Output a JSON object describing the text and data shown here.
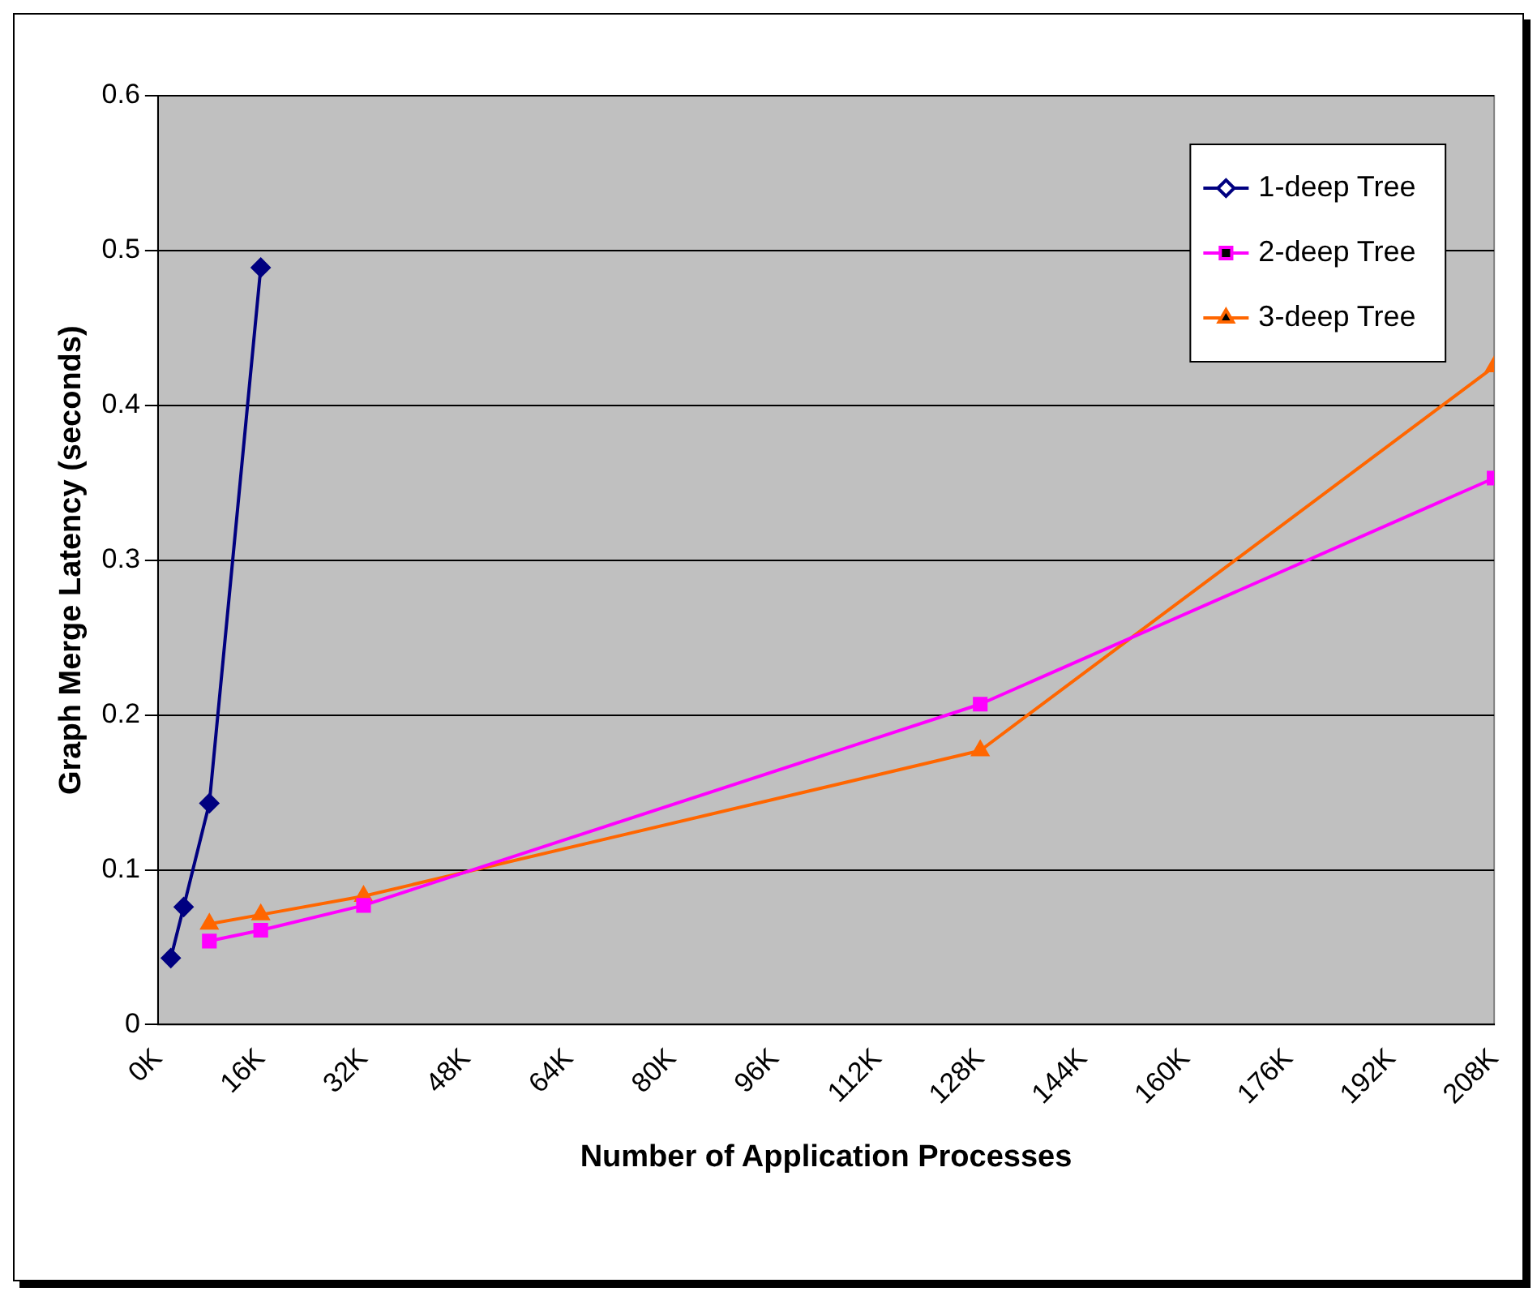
{
  "chart_data": {
    "type": "line",
    "xlabel": "Number of Application Processes",
    "ylabel": "Graph Merge Latency (seconds)",
    "xlim": [
      0,
      208
    ],
    "ylim": [
      0,
      0.6
    ],
    "xticks": [
      {
        "value": 0,
        "label": "0K"
      },
      {
        "value": 16,
        "label": "16K"
      },
      {
        "value": 32,
        "label": "32K"
      },
      {
        "value": 48,
        "label": "48K"
      },
      {
        "value": 64,
        "label": "64K"
      },
      {
        "value": 80,
        "label": "80K"
      },
      {
        "value": 96,
        "label": "96K"
      },
      {
        "value": 112,
        "label": "112K"
      },
      {
        "value": 128,
        "label": "128K"
      },
      {
        "value": 144,
        "label": "144K"
      },
      {
        "value": 160,
        "label": "160K"
      },
      {
        "value": 176,
        "label": "176K"
      },
      {
        "value": 192,
        "label": "192K"
      },
      {
        "value": 208,
        "label": "208K"
      }
    ],
    "yticks": [
      0,
      0.1,
      0.2,
      0.3,
      0.4,
      0.5,
      0.6
    ],
    "grid": "y",
    "legend": "top right",
    "line_style": "solid",
    "series": [
      {
        "name": "1-deep Tree",
        "color": "#000080",
        "marker": "diamond",
        "x": [
          2,
          4,
          8,
          16
        ],
        "values": [
          0.043,
          0.076,
          0.143,
          0.489
        ]
      },
      {
        "name": "2-deep Tree",
        "color": "#ff00ff",
        "marker": "square",
        "x": [
          8,
          16,
          32,
          128,
          208
        ],
        "values": [
          0.054,
          0.061,
          0.077,
          0.207,
          0.353
        ]
      },
      {
        "name": "3-deep Tree",
        "color": "#ff6600",
        "marker": "triangle",
        "x": [
          8,
          16,
          32,
          128,
          208
        ],
        "values": [
          0.065,
          0.071,
          0.083,
          0.177,
          0.425
        ]
      }
    ]
  }
}
